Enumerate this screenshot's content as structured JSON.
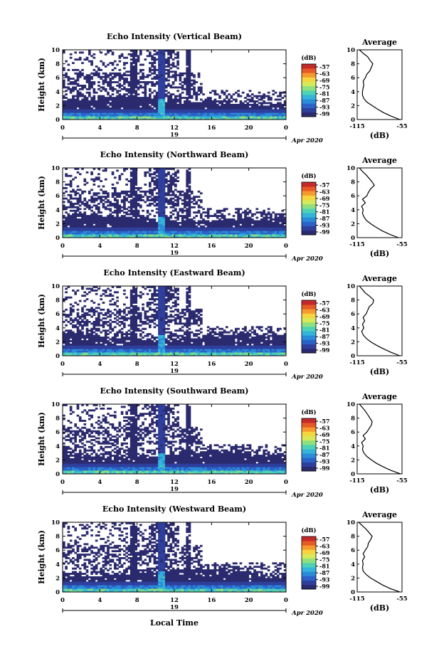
{
  "figure": {
    "xlabel": "Local Time",
    "date_label": "Apr 2020",
    "day_label": "19",
    "colorbar_unit": "(dB)",
    "colorbar_ticks": [
      "-57",
      "-63",
      "-69",
      "-75",
      "-81",
      "-87",
      "-93",
      "-99"
    ],
    "avg_title": "Average",
    "avg_xlabel": "(dB)",
    "avg_xticks": [
      "-115",
      "-55"
    ],
    "colorscale": [
      "#2b2a6e",
      "#2f3f9c",
      "#2b62c8",
      "#2a8bd8",
      "#33b4d8",
      "#4fd2b4",
      "#8fe07e",
      "#d7e85a",
      "#f5d540",
      "#f59a2f",
      "#e55a27",
      "#c42a2a"
    ]
  },
  "chart_data": [
    {
      "type": "heatmap",
      "title": "Echo Intensity (Vertical Beam)",
      "ylabel": "Height (km)",
      "xlabel": "Local Time",
      "x_ticks": [
        "0",
        "4",
        "8",
        "12",
        "16",
        "20",
        "0"
      ],
      "y_ticks": [
        "0",
        "2",
        "4",
        "6",
        "8",
        "10"
      ],
      "xlim": [
        0,
        24
      ],
      "ylim": [
        0,
        10
      ],
      "colorbar": {
        "label": "(dB)",
        "range": [
          -99,
          -57
        ]
      },
      "average_profile": {
        "title": "Average",
        "xlabel": "(dB)",
        "xlim": [
          -115,
          -55
        ],
        "heights": [
          0,
          0.5,
          1,
          1.5,
          2,
          2.5,
          3,
          3.5,
          4,
          4.5,
          5,
          5.5,
          6,
          6.5,
          7,
          7.5,
          8,
          8.5,
          9,
          9.5,
          10
        ],
        "values": [
          -58,
          -70,
          -80,
          -88,
          -95,
          -102,
          -106,
          -108,
          -108,
          -107,
          -106,
          -107,
          -104,
          -102,
          -98,
          -96,
          -94,
          -98,
          -101,
          -107,
          -112
        ]
      }
    },
    {
      "type": "heatmap",
      "title": "Echo Intensity (Northward Beam)",
      "ylabel": "Height (km)",
      "xlabel": "Local Time",
      "x_ticks": [
        "0",
        "4",
        "8",
        "12",
        "16",
        "20",
        "0"
      ],
      "y_ticks": [
        "0",
        "2",
        "4",
        "6",
        "8",
        "10"
      ],
      "xlim": [
        0,
        24
      ],
      "ylim": [
        0,
        10
      ],
      "colorbar": {
        "label": "(dB)",
        "range": [
          -99,
          -57
        ]
      },
      "average_profile": {
        "title": "Average",
        "xlabel": "(dB)",
        "xlim": [
          -115,
          -55
        ],
        "heights": [
          0,
          0.5,
          1,
          1.5,
          2,
          2.5,
          3,
          3.5,
          4,
          4.5,
          5,
          5.5,
          6,
          6.5,
          7,
          7.5,
          8,
          8.5,
          9,
          9.5,
          10
        ],
        "values": [
          -60,
          -72,
          -82,
          -90,
          -97,
          -103,
          -106,
          -108,
          -107,
          -109,
          -104,
          -108,
          -102,
          -100,
          -97,
          -92,
          -95,
          -99,
          -103,
          -108,
          -112
        ]
      }
    },
    {
      "type": "heatmap",
      "title": "Echo Intensity (Eastward Beam)",
      "ylabel": "Height (km)",
      "xlabel": "Local Time",
      "x_ticks": [
        "0",
        "4",
        "8",
        "12",
        "16",
        "20",
        "0"
      ],
      "y_ticks": [
        "0",
        "2",
        "4",
        "6",
        "8",
        "10"
      ],
      "xlim": [
        0,
        24
      ],
      "ylim": [
        0,
        10
      ],
      "colorbar": {
        "label": "(dB)",
        "range": [
          -99,
          -57
        ]
      },
      "average_profile": {
        "title": "Average",
        "xlabel": "(dB)",
        "xlim": [
          -115,
          -55
        ],
        "heights": [
          0,
          0.5,
          1,
          1.5,
          2,
          2.5,
          3,
          3.5,
          4,
          4.5,
          5,
          5.5,
          6,
          6.5,
          7,
          7.5,
          8,
          8.5,
          9,
          9.5,
          10
        ],
        "values": [
          -58,
          -70,
          -80,
          -89,
          -97,
          -103,
          -107,
          -109,
          -106,
          -108,
          -105,
          -107,
          -103,
          -101,
          -99,
          -94,
          -93,
          -98,
          -104,
          -108,
          -112
        ]
      }
    },
    {
      "type": "heatmap",
      "title": "Echo Intensity (Southward Beam)",
      "ylabel": "Height (km)",
      "xlabel": "Local Time",
      "x_ticks": [
        "0",
        "4",
        "8",
        "12",
        "16",
        "20",
        "0"
      ],
      "y_ticks": [
        "0",
        "2",
        "4",
        "6",
        "8",
        "10"
      ],
      "xlim": [
        0,
        24
      ],
      "ylim": [
        0,
        10
      ],
      "colorbar": {
        "label": "(dB)",
        "range": [
          -99,
          -57
        ]
      },
      "average_profile": {
        "title": "Average",
        "xlabel": "(dB)",
        "xlim": [
          -115,
          -55
        ],
        "heights": [
          0,
          0.5,
          1,
          1.5,
          2,
          2.5,
          3,
          3.5,
          4,
          4.5,
          5,
          5.5,
          6,
          6.5,
          7,
          7.5,
          8,
          8.5,
          9,
          9.5,
          10
        ],
        "values": [
          -57,
          -70,
          -80,
          -89,
          -96,
          -102,
          -106,
          -108,
          -107,
          -109,
          -104,
          -107,
          -102,
          -99,
          -96,
          -95,
          -98,
          -101,
          -104,
          -108,
          -112
        ]
      }
    },
    {
      "type": "heatmap",
      "title": "Echo Intensity (Westward Beam)",
      "ylabel": "Height (km)",
      "xlabel": "Local Time",
      "x_ticks": [
        "0",
        "4",
        "8",
        "12",
        "16",
        "20",
        "0"
      ],
      "y_ticks": [
        "0",
        "2",
        "4",
        "6",
        "8",
        "10"
      ],
      "xlim": [
        0,
        24
      ],
      "ylim": [
        0,
        10
      ],
      "colorbar": {
        "label": "(dB)",
        "range": [
          -99,
          -57
        ]
      },
      "average_profile": {
        "title": "Average",
        "xlabel": "(dB)",
        "xlim": [
          -115,
          -55
        ],
        "heights": [
          0,
          0.5,
          1,
          1.5,
          2,
          2.5,
          3,
          3.5,
          4,
          4.5,
          5,
          5.5,
          6,
          6.5,
          7,
          7.5,
          8,
          8.5,
          9,
          9.5,
          10
        ],
        "values": [
          -58,
          -71,
          -81,
          -89,
          -97,
          -103,
          -107,
          -108,
          -107,
          -108,
          -105,
          -107,
          -104,
          -101,
          -100,
          -97,
          -95,
          -99,
          -103,
          -108,
          -113
        ]
      }
    }
  ]
}
